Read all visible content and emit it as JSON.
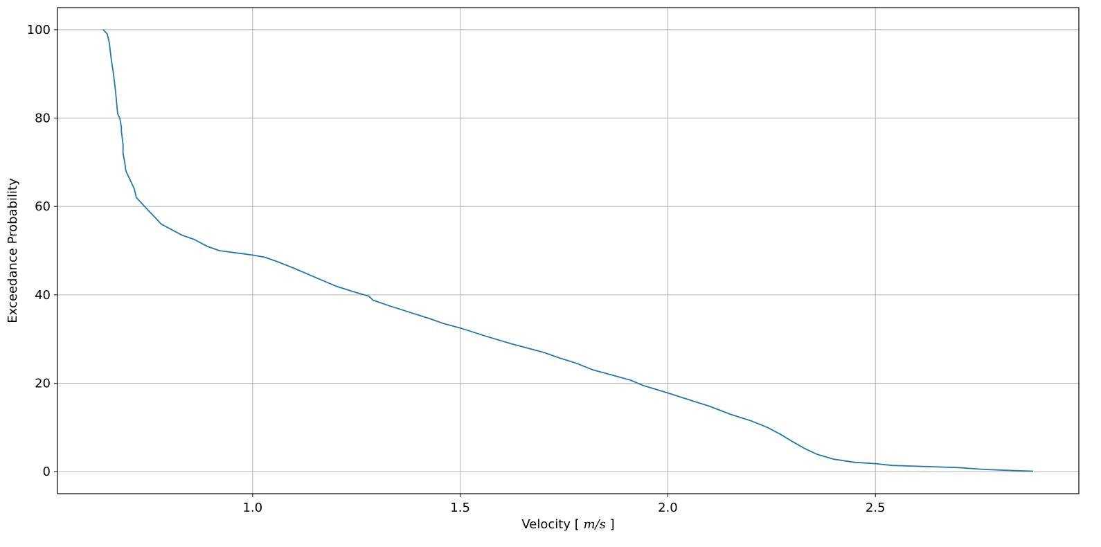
{
  "chart_data": {
    "type": "line",
    "title": "",
    "xlabel": "Velocity",
    "xlabel_unit": "m/s",
    "ylabel": "Exceedance Probability",
    "xlim": [
      0.53,
      2.99
    ],
    "ylim": [
      -5,
      105
    ],
    "x_ticks": [
      1.0,
      1.5,
      2.0,
      2.5
    ],
    "x_tick_labels": [
      "1.0",
      "1.5",
      "2.0",
      "2.5"
    ],
    "y_ticks": [
      0,
      20,
      40,
      60,
      80,
      100
    ],
    "y_tick_labels": [
      "0",
      "20",
      "40",
      "60",
      "80",
      "100"
    ],
    "grid": true,
    "series": [
      {
        "color": "#1f77b4",
        "x": [
          0.64,
          0.65,
          0.655,
          0.66,
          0.665,
          0.67,
          0.675,
          0.68,
          0.684,
          0.684,
          0.688,
          0.688,
          0.692,
          0.695,
          0.7,
          0.705,
          0.71,
          0.715,
          0.72,
          0.73,
          0.74,
          0.75,
          0.76,
          0.77,
          0.78,
          0.8,
          0.83,
          0.86,
          0.88,
          0.89,
          0.92,
          0.96,
          1.0,
          1.03,
          1.06,
          1.1,
          1.15,
          1.2,
          1.25,
          1.28,
          1.29,
          1.33,
          1.38,
          1.43,
          1.46,
          1.5,
          1.56,
          1.62,
          1.66,
          1.7,
          1.74,
          1.78,
          1.82,
          1.86,
          1.91,
          1.94,
          2.0,
          2.05,
          2.1,
          2.15,
          2.2,
          2.24,
          2.27,
          2.3,
          2.33,
          2.36,
          2.4,
          2.45,
          2.5,
          2.54,
          2.6,
          2.7,
          2.76,
          2.84,
          2.88
        ],
        "y": [
          100,
          99,
          97,
          93,
          90,
          86,
          81,
          80,
          78,
          77,
          74,
          72,
          70,
          68,
          67,
          66,
          65,
          64,
          62,
          61,
          60,
          59,
          58,
          57,
          56,
          55,
          53.5,
          52.5,
          51.5,
          51,
          50,
          49.5,
          49,
          48.5,
          47.5,
          46,
          44,
          42,
          40.5,
          39.7,
          38.8,
          37.5,
          36,
          34.5,
          33.5,
          32.5,
          30.7,
          29,
          28,
          27,
          25.7,
          24.5,
          23,
          22,
          20.7,
          19.5,
          17.8,
          16.3,
          14.8,
          13,
          11.5,
          10,
          8.5,
          6.8,
          5.2,
          3.9,
          2.8,
          2.1,
          1.8,
          1.4,
          1.2,
          0.9,
          0.5,
          0.2,
          0.1
        ]
      }
    ]
  }
}
